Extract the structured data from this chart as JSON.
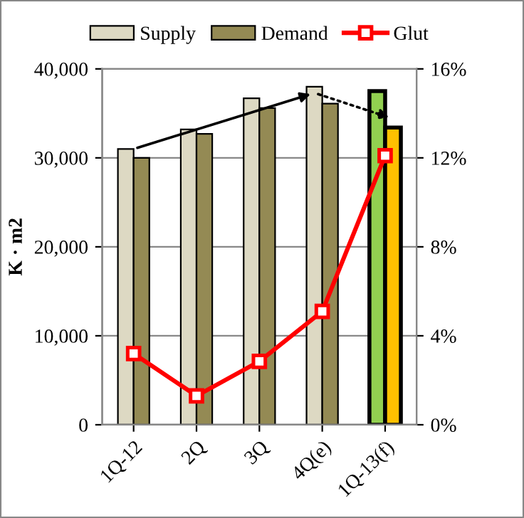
{
  "chart_data": {
    "type": "bar",
    "ylabel": "K · m2",
    "categories": [
      "1Q-12",
      "2Q",
      "3Q",
      "4Q(e)",
      "1Q-13(f)"
    ],
    "series": [
      {
        "name": "Supply",
        "color": "#ddd9c3",
        "colors": [
          "#ddd9c3",
          "#ddd9c3",
          "#ddd9c3",
          "#ddd9c3",
          "#92d050"
        ],
        "values": [
          31000,
          33200,
          36700,
          38000,
          37500
        ]
      },
      {
        "name": "Demand",
        "color": "#948a54",
        "colors": [
          "#948a54",
          "#948a54",
          "#948a54",
          "#948a54",
          "#ffc000"
        ],
        "values": [
          30000,
          32700,
          35600,
          36100,
          33400
        ]
      },
      {
        "name": "Glut",
        "type": "line",
        "axis": "y2",
        "color": "#ff0000",
        "marker": "square",
        "values": [
          3.2,
          1.3,
          2.85,
          5.1,
          12.1
        ]
      }
    ],
    "ylim": [
      0,
      40000
    ],
    "yticks": [
      {
        "value": 0,
        "label": "0"
      },
      {
        "value": 10000,
        "label": "10,000"
      },
      {
        "value": 20000,
        "label": "20,000"
      },
      {
        "value": 30000,
        "label": "30,000"
      },
      {
        "value": 40000,
        "label": "40,000"
      }
    ],
    "y2lim": [
      0,
      16
    ],
    "y2ticks": [
      {
        "value": 0,
        "label": "0%"
      },
      {
        "value": 4,
        "label": "4%"
      },
      {
        "value": 8,
        "label": "8%"
      },
      {
        "value": 12,
        "label": "12%"
      },
      {
        "value": 16,
        "label": "16%"
      }
    ],
    "grid": "y",
    "legend": "top"
  }
}
